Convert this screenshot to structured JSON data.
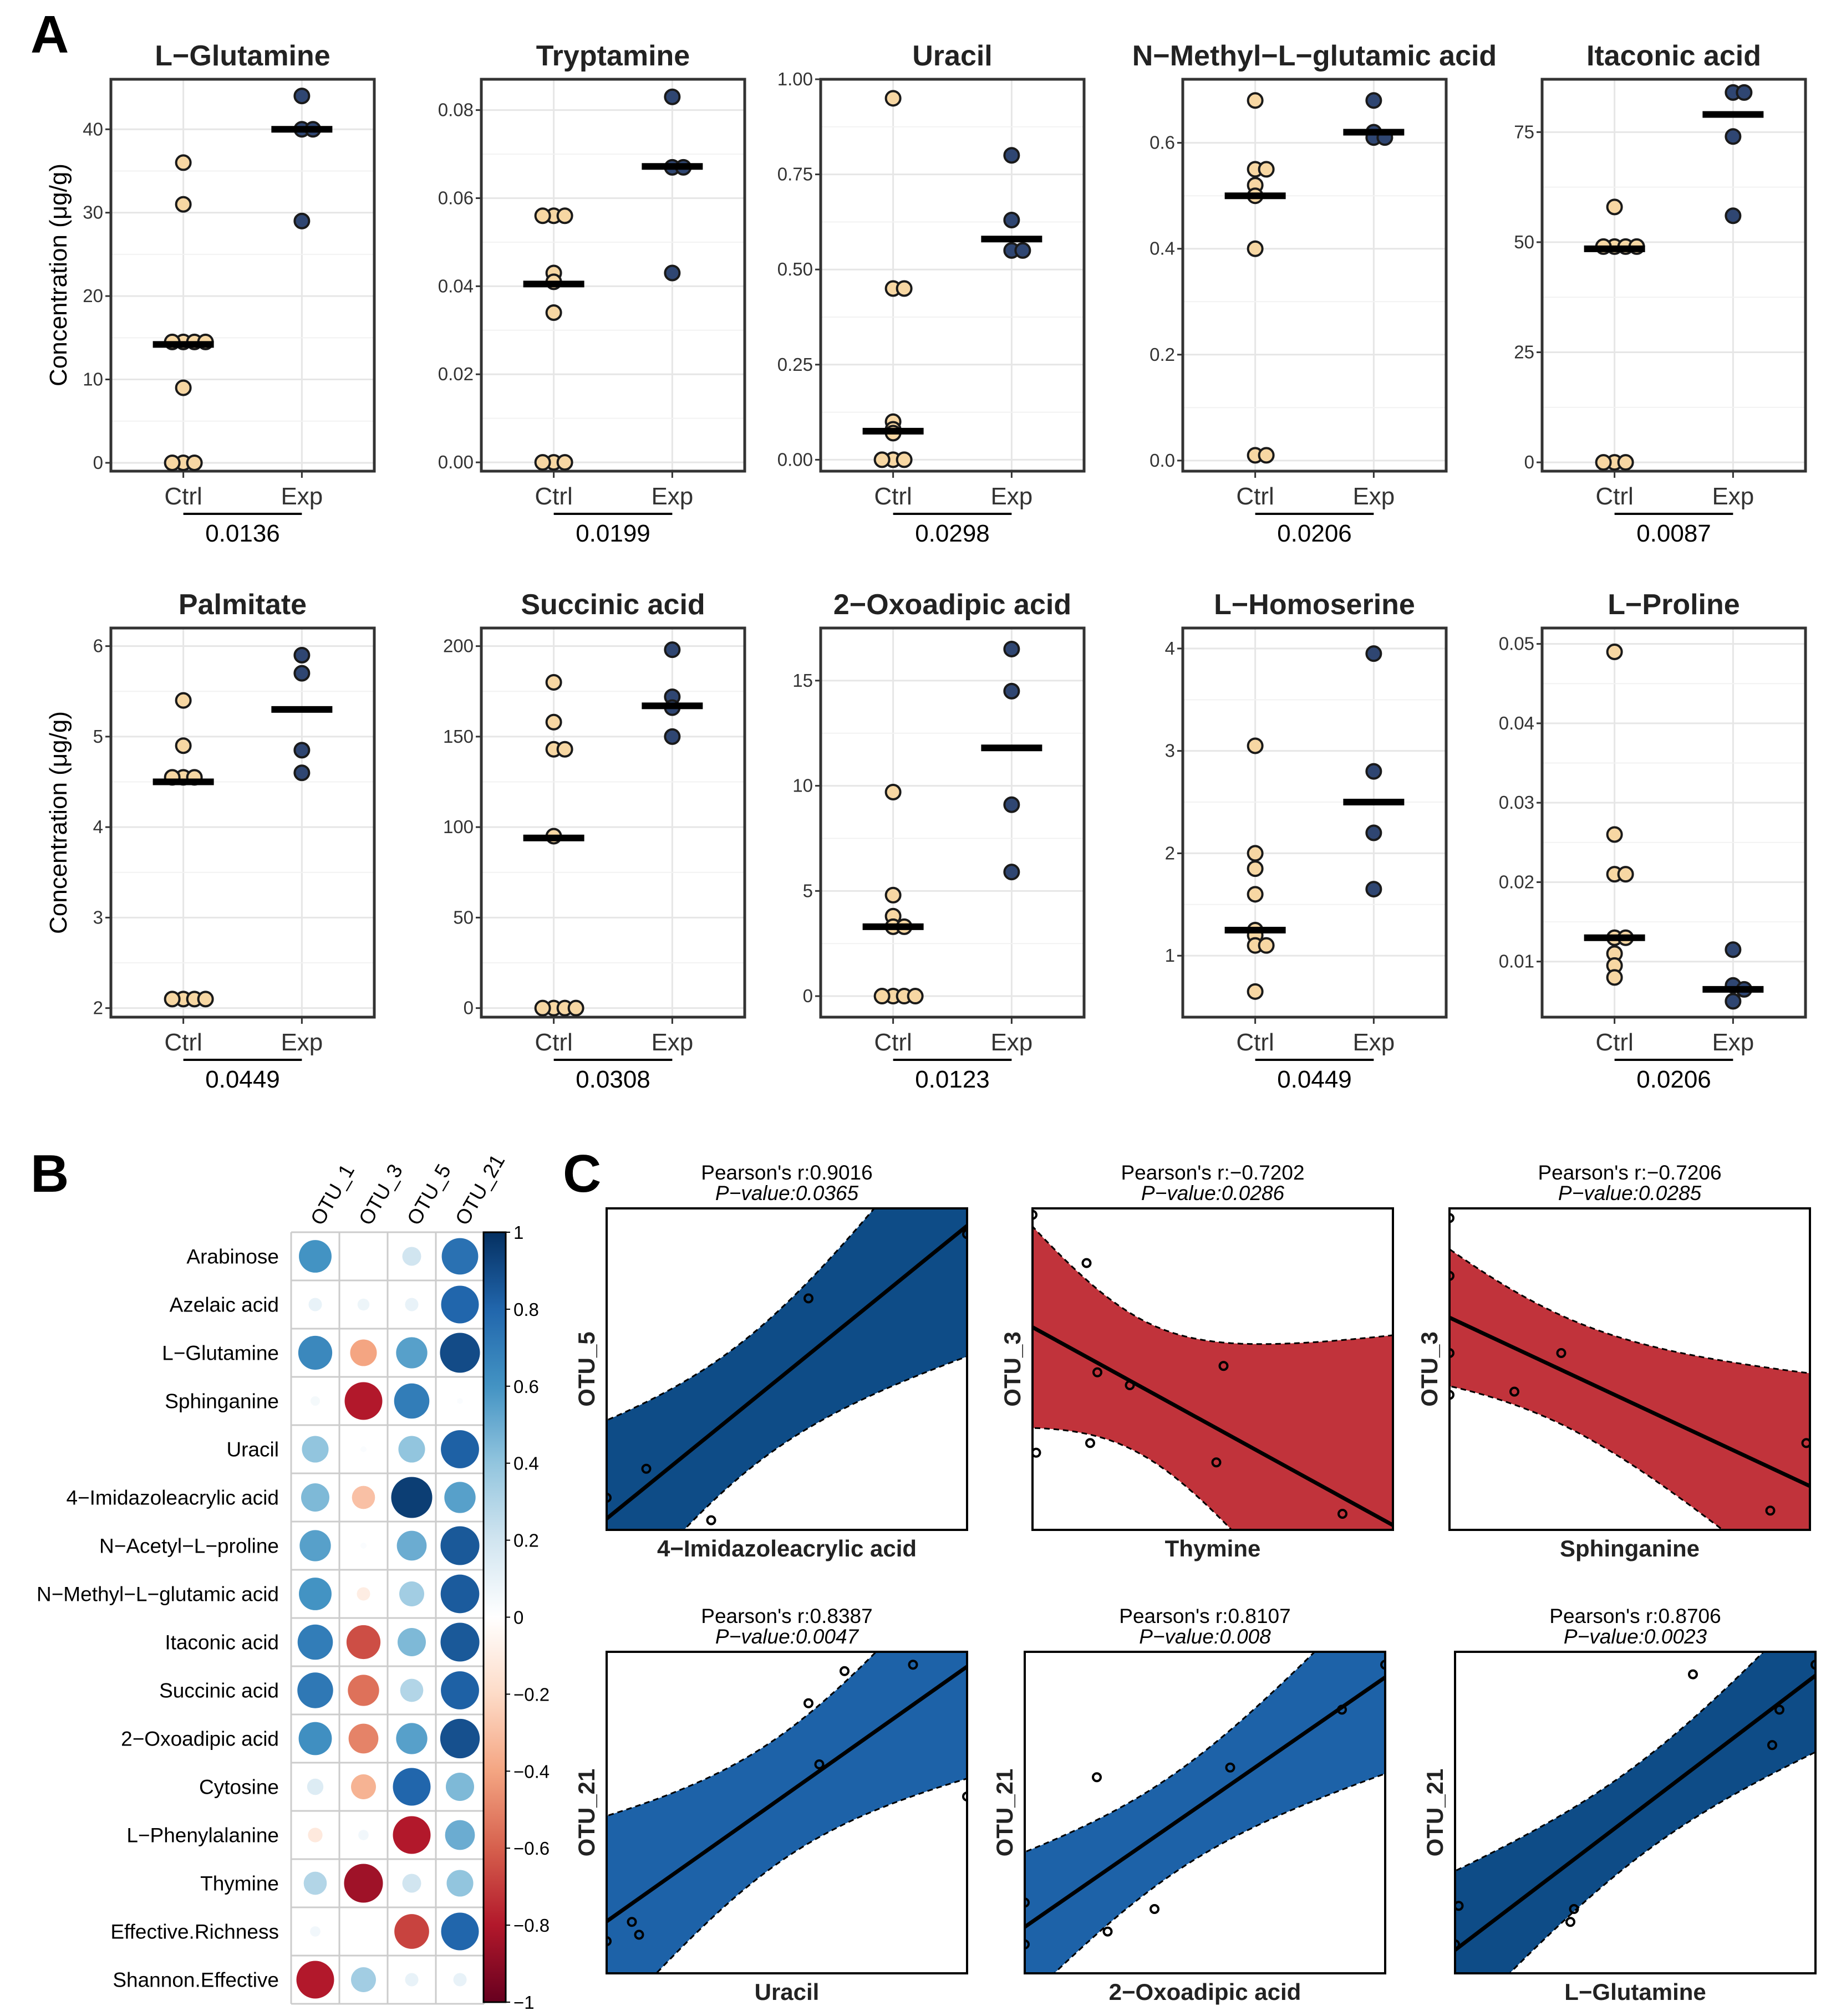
{
  "figure": {
    "panel_labels": [
      "A",
      "B",
      "C"
    ],
    "colors": {
      "ctrl": "#f7d7a3",
      "exp": "#2f4672",
      "median": "#000000",
      "grid": "#e6e6e6",
      "neg_band": "#c1333b"
    }
  },
  "chart_data": [
    {
      "id": "A",
      "type": "scatter",
      "kind": "dot-strip",
      "ylabel": "Concentration (μg/g)",
      "groups": [
        "Ctrl",
        "Exp"
      ],
      "panels": [
        {
          "title": "L−Glutamine",
          "ylim": [
            -1,
            46
          ],
          "ticks": [
            0,
            10,
            20,
            30,
            40
          ],
          "tick_labels": [
            "0",
            "10",
            "20",
            "30",
            "40"
          ],
          "ctrl": [
            36,
            31,
            14.5,
            14.5,
            14.5,
            14.5,
            9,
            0,
            0,
            0
          ],
          "exp": [
            44,
            40,
            40,
            29
          ],
          "ctrl_median": 14.2,
          "exp_median": 40,
          "p": "0.0136"
        },
        {
          "title": "Tryptamine",
          "ylim": [
            -0.002,
            0.087
          ],
          "ticks": [
            0,
            0.02,
            0.04,
            0.06,
            0.08
          ],
          "tick_labels": [
            "0.00",
            "0.02",
            "0.04",
            "0.06",
            "0.08"
          ],
          "ctrl": [
            0.056,
            0.056,
            0.056,
            0.043,
            0.041,
            0.034,
            0,
            0,
            0
          ],
          "exp": [
            0.083,
            0.067,
            0.067,
            0.043
          ],
          "ctrl_median": 0.0405,
          "exp_median": 0.0672,
          "p": "0.0199"
        },
        {
          "title": "Uracil",
          "ylim": [
            -0.03,
            1.0
          ],
          "ticks": [
            0,
            0.25,
            0.5,
            0.75,
            1.0
          ],
          "tick_labels": [
            "0.00",
            "0.25",
            "0.50",
            "0.75",
            "1.00"
          ],
          "ctrl": [
            0.95,
            0.45,
            0.45,
            0.1,
            0.08,
            0.07,
            0,
            0,
            0
          ],
          "exp": [
            0.8,
            0.63,
            0.55,
            0.55
          ],
          "ctrl_median": 0.075,
          "exp_median": 0.58,
          "p": "0.0298"
        },
        {
          "title": "N−Methyl−L−glutamic acid",
          "ylim": [
            -0.02,
            0.72
          ],
          "ticks": [
            0,
            0.2,
            0.4,
            0.6
          ],
          "tick_labels": [
            "0.0",
            "0.2",
            "0.4",
            "0.6"
          ],
          "ctrl": [
            0.68,
            0.55,
            0.55,
            0.52,
            0.5,
            0.4,
            0.01,
            0.01
          ],
          "exp": [
            0.68,
            0.62,
            0.61,
            0.61
          ],
          "ctrl_median": 0.5,
          "exp_median": 0.62,
          "p": "0.0206"
        },
        {
          "title": "Itaconic acid",
          "ylim": [
            -2,
            87
          ],
          "ticks": [
            0,
            25,
            50,
            75
          ],
          "tick_labels": [
            "0",
            "25",
            "50",
            "75"
          ],
          "ctrl": [
            58,
            49,
            49,
            49,
            49,
            0,
            0,
            0
          ],
          "exp": [
            84,
            84,
            74,
            56
          ],
          "ctrl_median": 48.5,
          "exp_median": 79,
          "p": "0.0087"
        },
        {
          "title": "Palmitate",
          "ylim": [
            1.9,
            6.2
          ],
          "ticks": [
            2,
            3,
            4,
            5,
            6
          ],
          "tick_labels": [
            "2",
            "3",
            "4",
            "5",
            "6"
          ],
          "ctrl": [
            5.4,
            4.9,
            4.55,
            4.55,
            4.55,
            2.1,
            2.1,
            2.1,
            2.1
          ],
          "exp": [
            5.9,
            5.7,
            4.85,
            4.6
          ],
          "ctrl_median": 4.5,
          "exp_median": 5.3,
          "p": "0.0449"
        },
        {
          "title": "Succinic acid",
          "ylim": [
            -5,
            210
          ],
          "ticks": [
            0,
            50,
            100,
            150,
            200
          ],
          "tick_labels": [
            "0",
            "50",
            "100",
            "150",
            "200"
          ],
          "ctrl": [
            180,
            158,
            143,
            143,
            95,
            0,
            0,
            0,
            0
          ],
          "exp": [
            198,
            172,
            166,
            150
          ],
          "ctrl_median": 94,
          "exp_median": 167,
          "p": "0.0308"
        },
        {
          "title": "2−Oxoadipic acid",
          "ylim": [
            -1,
            17.5
          ],
          "ticks": [
            0,
            5,
            10,
            15
          ],
          "tick_labels": [
            "0",
            "5",
            "10",
            "15"
          ],
          "ctrl": [
            9.7,
            4.8,
            3.8,
            3.3,
            3.3,
            0,
            0,
            0,
            0
          ],
          "exp": [
            16.5,
            14.5,
            9.1,
            5.9
          ],
          "ctrl_median": 3.3,
          "exp_median": 11.8,
          "p": "0.0123"
        },
        {
          "title": "L−Homoserine",
          "ylim": [
            0.4,
            4.2
          ],
          "ticks": [
            1,
            2,
            3,
            4
          ],
          "tick_labels": [
            "1",
            "2",
            "3",
            "4"
          ],
          "ctrl": [
            3.05,
            2.0,
            1.85,
            1.6,
            1.25,
            1.2,
            1.1,
            1.1,
            0.65
          ],
          "exp": [
            3.95,
            2.8,
            2.2,
            1.65
          ],
          "ctrl_median": 1.25,
          "exp_median": 2.5,
          "p": "0.0449"
        },
        {
          "title": "L−Proline",
          "ylim": [
            0.003,
            0.052
          ],
          "ticks": [
            0.01,
            0.02,
            0.03,
            0.04,
            0.05
          ],
          "tick_labels": [
            "0.01",
            "0.02",
            "0.03",
            "0.04",
            "0.05"
          ],
          "ctrl": [
            0.049,
            0.026,
            0.021,
            0.021,
            0.013,
            0.013,
            0.011,
            0.0095,
            0.008
          ],
          "exp": [
            0.0115,
            0.007,
            0.0065,
            0.005
          ],
          "ctrl_median": 0.013,
          "exp_median": 0.0065,
          "p": "0.0206"
        }
      ]
    },
    {
      "id": "B",
      "type": "heatmap",
      "kind": "correlation-dot-matrix",
      "columns": [
        "OTU_1",
        "OTU_3",
        "OTU_5",
        "OTU_21"
      ],
      "rows": [
        "Arabinose",
        "Azelaic acid",
        "L−Glutamine",
        "Sphinganine",
        "Uracil",
        "4−Imidazoleacrylic acid",
        "N−Acetyl−L−proline",
        "N−Methyl−L−glutamic acid",
        "Itaconic acid",
        "Succinic acid",
        "2−Oxoadipic acid",
        "Cytosine",
        "L−Phenylalanine",
        "Thymine",
        "Effective.Richness",
        "Shannon.Effective"
      ],
      "values": [
        [
          0.6,
          0.0,
          0.2,
          0.75
        ],
        [
          0.1,
          0.08,
          0.1,
          0.8
        ],
        [
          0.65,
          -0.4,
          0.55,
          0.9
        ],
        [
          0.05,
          -0.8,
          0.7,
          0.02
        ],
        [
          0.4,
          0.02,
          0.4,
          0.82
        ],
        [
          0.45,
          -0.3,
          0.95,
          0.55
        ],
        [
          0.55,
          0.02,
          0.5,
          0.85
        ],
        [
          0.6,
          -0.1,
          0.35,
          0.84
        ],
        [
          0.7,
          -0.65,
          0.45,
          0.85
        ],
        [
          0.72,
          -0.55,
          0.3,
          0.82
        ],
        [
          0.62,
          -0.5,
          0.55,
          0.88
        ],
        [
          0.15,
          -0.35,
          0.8,
          0.45
        ],
        [
          -0.12,
          0.06,
          -0.8,
          0.5
        ],
        [
          0.3,
          -0.85,
          0.2,
          0.4
        ],
        [
          0.06,
          0.0,
          -0.68,
          0.8
        ],
        [
          -0.8,
          0.35,
          0.1,
          0.1
        ]
      ],
      "legend_ticks": [
        "1",
        "0.8",
        "0.6",
        "0.4",
        "0.2",
        "0",
        "−0.2",
        "−0.4",
        "−0.6",
        "−0.8",
        "−1"
      ],
      "legend_values": [
        1,
        0.8,
        0.6,
        0.4,
        0.2,
        0,
        -0.2,
        -0.4,
        -0.6,
        -0.8,
        -1
      ]
    },
    {
      "id": "C",
      "type": "scatter",
      "kind": "correlation-regression",
      "panels": [
        {
          "r_label": "Pearson's r:0.9016",
          "p_label": "P−value:0.0365",
          "xlabel": "4−Imidazoleacrylic acid",
          "ylabel": "OTU_5",
          "color": "#0e4c87",
          "points": [
            [
              0.0,
              0.1
            ],
            [
              0.11,
              0.19
            ],
            [
              0.29,
              0.03
            ],
            [
              0.56,
              0.72
            ],
            [
              1.0,
              0.92
            ]
          ]
        },
        {
          "r_label": "Pearson's r:−0.7202",
          "p_label": "P−value:0.0286",
          "xlabel": "Thymine",
          "ylabel": "OTU_3",
          "color": "#c1333b",
          "points": [
            [
              0.0,
              0.98
            ],
            [
              0.15,
              0.83
            ],
            [
              0.18,
              0.49
            ],
            [
              0.27,
              0.45
            ],
            [
              0.01,
              0.24
            ],
            [
              0.16,
              0.27
            ],
            [
              0.53,
              0.51
            ],
            [
              0.51,
              0.21
            ],
            [
              0.86,
              0.05
            ]
          ]
        },
        {
          "r_label": "Pearson's r:−0.7206",
          "p_label": "P−value:0.0285",
          "xlabel": "Sphinganine",
          "ylabel": "OTU_3",
          "color": "#c1333b",
          "points": [
            [
              0.0,
              0.97
            ],
            [
              0.0,
              0.79
            ],
            [
              0.0,
              0.55
            ],
            [
              0.31,
              0.55
            ],
            [
              0.18,
              0.43
            ],
            [
              0.0,
              0.42
            ],
            [
              0.99,
              0.27
            ],
            [
              0.89,
              0.06
            ]
          ]
        },
        {
          "r_label": "Pearson's r:0.8387",
          "p_label": "P−value:0.0047",
          "xlabel": "Uracil",
          "ylabel": "OTU_21",
          "color": "#1d62a8",
          "points": [
            [
              0.0,
              0.1
            ],
            [
              0.07,
              0.16
            ],
            [
              0.09,
              0.12
            ],
            [
              0.56,
              0.84
            ],
            [
              0.66,
              0.94
            ],
            [
              0.85,
              0.96
            ],
            [
              0.59,
              0.65
            ],
            [
              1.0,
              0.55
            ]
          ]
        },
        {
          "r_label": "Pearson's r:0.8107",
          "p_label": "P−value:0.008",
          "xlabel": "2−Oxoadipic acid",
          "ylabel": "OTU_21",
          "color": "#1d62a8",
          "points": [
            [
              0.0,
              0.22
            ],
            [
              0.0,
              0.09
            ],
            [
              0.2,
              0.61
            ],
            [
              0.23,
              0.13
            ],
            [
              0.36,
              0.2
            ],
            [
              0.57,
              0.64
            ],
            [
              0.88,
              0.82
            ],
            [
              1.0,
              0.96
            ]
          ]
        },
        {
          "r_label": "Pearson's r:0.8706",
          "p_label": "P−value:0.0023",
          "xlabel": "L−Glutamine",
          "ylabel": "OTU_21",
          "color": "#0e4c87",
          "points": [
            [
              0.0,
              0.09
            ],
            [
              0.01,
              0.21
            ],
            [
              0.32,
              0.16
            ],
            [
              0.33,
              0.2
            ],
            [
              0.66,
              0.93
            ],
            [
              0.88,
              0.71
            ],
            [
              0.9,
              0.82
            ],
            [
              1.0,
              0.96
            ]
          ]
        }
      ]
    }
  ]
}
